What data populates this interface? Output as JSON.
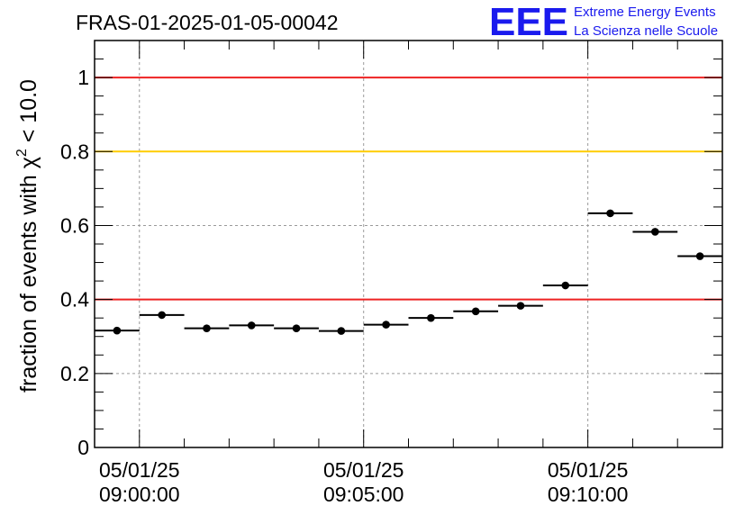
{
  "title": "FRAS-01-2025-01-05-00042",
  "logo": {
    "letters": "EEE",
    "line1": "Extreme Energy Events",
    "line2": "La Scienza nelle Scuole",
    "color": "#1a1aee"
  },
  "chart_data": {
    "type": "scatter",
    "ylabel_prefix": "fraction of events with ",
    "ylabel_symbol": "χ",
    "ylabel_superscript": "2",
    "ylabel_suffix": " < 10.0",
    "ylim": [
      0,
      1.1
    ],
    "yticks": [
      0,
      0.2,
      0.4,
      0.6,
      0.8,
      1
    ],
    "ytick_labels": [
      "0",
      "0.2",
      "0.4",
      "0.6",
      "0.8",
      "1"
    ],
    "xlim": [
      "08:59:00",
      "09:13:00"
    ],
    "xticks": [
      {
        "time": "09:00:00",
        "date_label": "05/01/25",
        "time_label": "09:00:00"
      },
      {
        "time": "09:05:00",
        "date_label": "05/01/25",
        "time_label": "09:05:00"
      },
      {
        "time": "09:10:00",
        "date_label": "05/01/25",
        "time_label": "09:10:00"
      }
    ],
    "grid": true,
    "reference_lines": [
      {
        "y": 1.0,
        "color": "#ee2222"
      },
      {
        "y": 0.8,
        "color": "#ffcc00"
      },
      {
        "y": 0.4,
        "color": "#ee2222"
      }
    ],
    "bin_width_seconds": 60,
    "points": [
      {
        "x_start": "08:59:00",
        "y": 0.316
      },
      {
        "x_start": "09:00:00",
        "y": 0.358
      },
      {
        "x_start": "09:01:00",
        "y": 0.322
      },
      {
        "x_start": "09:02:00",
        "y": 0.33
      },
      {
        "x_start": "09:03:00",
        "y": 0.322
      },
      {
        "x_start": "09:04:00",
        "y": 0.315
      },
      {
        "x_start": "09:05:00",
        "y": 0.332
      },
      {
        "x_start": "09:06:00",
        "y": 0.35
      },
      {
        "x_start": "09:07:00",
        "y": 0.368
      },
      {
        "x_start": "09:08:00",
        "y": 0.383
      },
      {
        "x_start": "09:09:00",
        "y": 0.438
      },
      {
        "x_start": "09:10:00",
        "y": 0.633
      },
      {
        "x_start": "09:11:00",
        "y": 0.583
      },
      {
        "x_start": "09:12:00",
        "y": 0.517
      }
    ]
  }
}
